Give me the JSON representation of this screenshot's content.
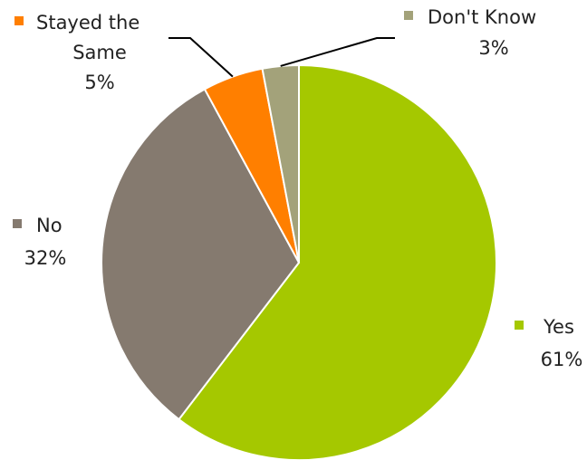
{
  "chart_data": {
    "type": "pie",
    "title": "",
    "start_angle_deg": 0,
    "direction": "clockwise",
    "slices": [
      {
        "label": "Yes",
        "value": 61,
        "value_label": "61%",
        "color": "#a5c800"
      },
      {
        "label": "No",
        "value": 32,
        "value_label": "32%",
        "color": "#857a6f"
      },
      {
        "label": "Stayed the Same",
        "label_lines": [
          "Stayed the",
          "Same"
        ],
        "value": 5,
        "value_label": "5%",
        "color": "#ff7f00"
      },
      {
        "label": "Don't Know",
        "value": 3,
        "value_label": "3%",
        "color": "#a3a27a"
      }
    ],
    "legend": "none",
    "labels": "outside"
  }
}
